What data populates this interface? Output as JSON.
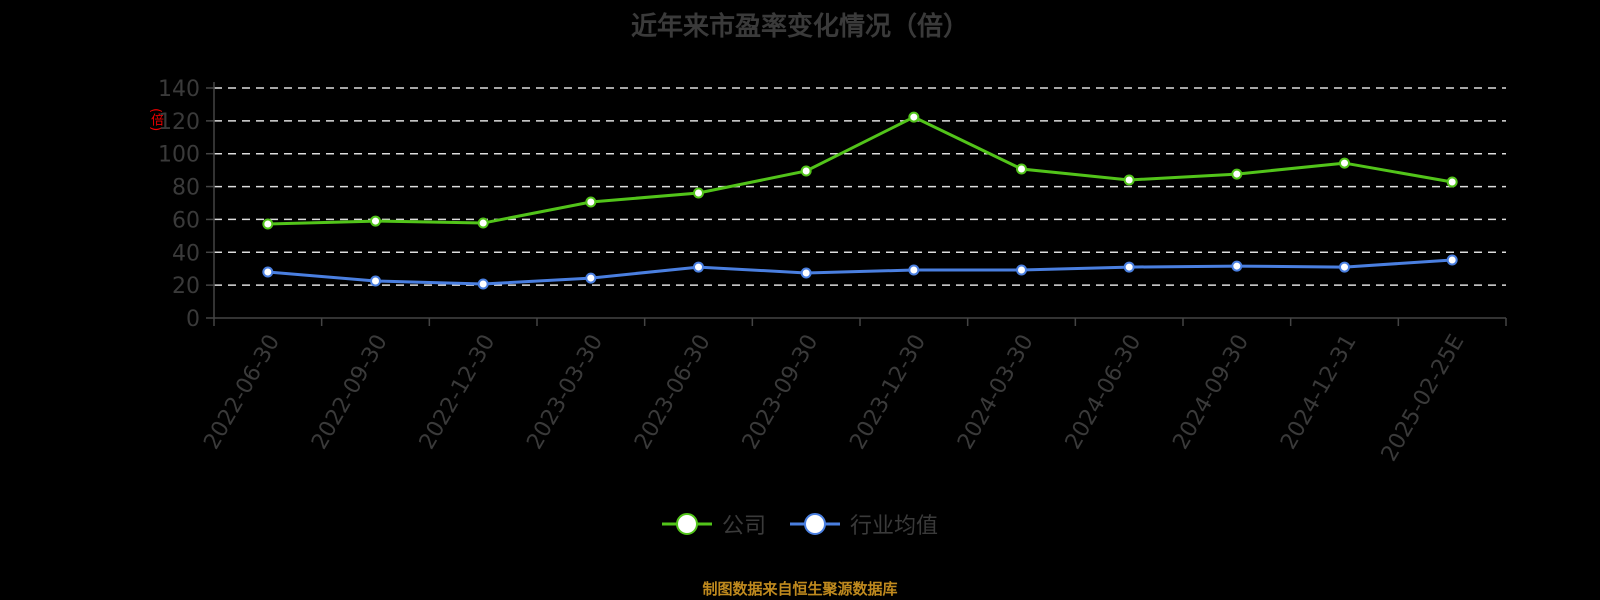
{
  "title": "近年来市盈率变化情况（倍）",
  "y_unit_label": "(倍)",
  "footer": "制图数据来自恒生聚源数据库",
  "legend": [
    {
      "label": "公司",
      "color": "#52c41a"
    },
    {
      "label": "行业均值",
      "color": "#4a7fe0"
    }
  ],
  "chart_data": {
    "type": "line",
    "title": "近年来市盈率变化情况（倍）",
    "xlabel": "",
    "ylabel": "倍",
    "ylim": [
      0,
      140
    ],
    "yticks": [
      0,
      20,
      40,
      60,
      80,
      100,
      120,
      140
    ],
    "grid": true,
    "legend_position": "bottom",
    "categories": [
      "2022-06-30",
      "2022-09-30",
      "2022-12-30",
      "2023-03-30",
      "2023-06-30",
      "2023-09-30",
      "2023-12-30",
      "2024-03-30",
      "2024-06-30",
      "2024-09-30",
      "2024-12-31",
      "2025-02-25E"
    ],
    "series": [
      {
        "name": "公司",
        "color": "#52c41a",
        "values": [
          57.2,
          59.0,
          57.8,
          70.6,
          76.1,
          89.5,
          122.3,
          90.7,
          84.0,
          87.6,
          94.3,
          82.8
        ]
      },
      {
        "name": "行业均值",
        "color": "#4a7fe0",
        "values": [
          28.0,
          22.5,
          20.7,
          24.3,
          31.0,
          27.4,
          29.2,
          29.2,
          31.0,
          31.6,
          31.0,
          35.3
        ]
      }
    ]
  }
}
